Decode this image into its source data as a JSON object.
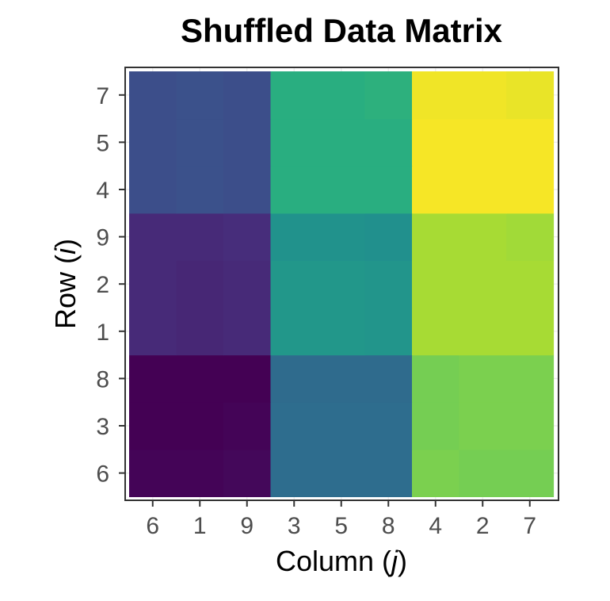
{
  "chart_data": {
    "type": "heatmap",
    "title": "Shuffled Data Matrix",
    "xlabel_prefix": "Column (",
    "xlabel_var": "j",
    "xlabel_suffix": ")",
    "ylabel_prefix": "Row (",
    "ylabel_var": "i",
    "ylabel_suffix": ")",
    "x_categories": [
      "6",
      "1",
      "9",
      "3",
      "5",
      "8",
      "4",
      "2",
      "7"
    ],
    "y_categories_bottom_to_top": [
      "6",
      "3",
      "8",
      "1",
      "2",
      "9",
      "4",
      "5",
      "7"
    ],
    "color_scale": "viridis",
    "value_range": [
      0,
      1
    ],
    "grid": true,
    "values_bottom_to_top": [
      [
        0.01,
        0.01,
        0.02,
        0.36,
        0.36,
        0.36,
        0.8,
        0.79,
        0.79
      ],
      [
        0.0,
        0.0,
        0.01,
        0.36,
        0.36,
        0.36,
        0.79,
        0.8,
        0.8
      ],
      [
        0.0,
        0.0,
        0.0,
        0.35,
        0.35,
        0.35,
        0.79,
        0.8,
        0.8
      ],
      [
        0.12,
        0.11,
        0.12,
        0.53,
        0.53,
        0.52,
        0.87,
        0.87,
        0.87
      ],
      [
        0.12,
        0.11,
        0.12,
        0.53,
        0.53,
        0.52,
        0.87,
        0.87,
        0.87
      ],
      [
        0.12,
        0.12,
        0.13,
        0.51,
        0.51,
        0.5,
        0.87,
        0.87,
        0.86
      ],
      [
        0.24,
        0.25,
        0.24,
        0.63,
        0.63,
        0.63,
        0.99,
        0.99,
        0.99
      ],
      [
        0.24,
        0.25,
        0.24,
        0.63,
        0.63,
        0.63,
        0.99,
        0.99,
        0.99
      ],
      [
        0.24,
        0.25,
        0.24,
        0.63,
        0.63,
        0.64,
        0.98,
        0.98,
        0.97
      ]
    ]
  }
}
